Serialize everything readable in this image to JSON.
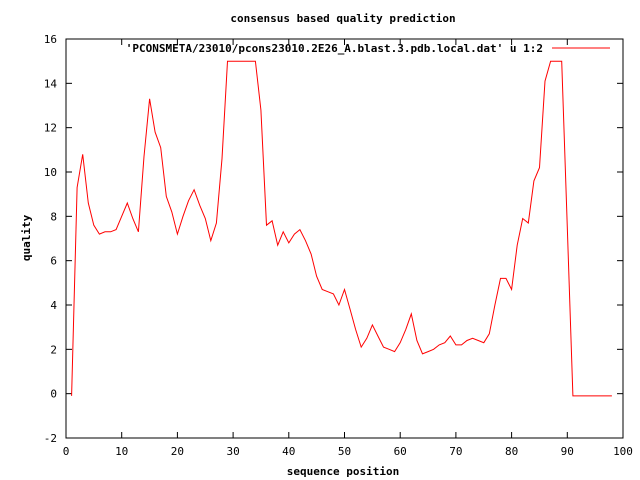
{
  "chart_data": {
    "type": "line",
    "title": "consensus based quality prediction",
    "xlabel": "sequence position",
    "ylabel": "quality",
    "xlim": [
      0,
      100
    ],
    "ylim": [
      -2,
      16
    ],
    "xticks": [
      0,
      10,
      20,
      30,
      40,
      50,
      60,
      70,
      80,
      90,
      100
    ],
    "yticks": [
      -2,
      0,
      2,
      4,
      6,
      8,
      10,
      12,
      14,
      16
    ],
    "legend_position": "top-right",
    "grid": false,
    "series": [
      {
        "name": "'PCONSMETA/23010/pcons23010.2E26_A.blast.3.pdb.local.dat' u 1:2",
        "color": "#ff0000",
        "x": [
          1,
          2,
          3,
          4,
          5,
          6,
          7,
          8,
          9,
          10,
          11,
          12,
          13,
          14,
          15,
          16,
          17,
          18,
          19,
          20,
          21,
          22,
          23,
          24,
          25,
          26,
          27,
          28,
          29,
          30,
          31,
          32,
          33,
          34,
          35,
          36,
          37,
          38,
          39,
          40,
          41,
          42,
          43,
          44,
          45,
          46,
          47,
          48,
          49,
          50,
          51,
          52,
          53,
          54,
          55,
          56,
          57,
          58,
          59,
          60,
          61,
          62,
          63,
          64,
          65,
          66,
          67,
          68,
          69,
          70,
          71,
          72,
          73,
          74,
          75,
          76,
          77,
          78,
          79,
          80,
          81,
          82,
          83,
          84,
          85,
          86,
          87,
          88,
          89,
          90,
          91,
          92,
          93,
          94,
          95,
          96,
          97,
          98
        ],
        "y": [
          -0.1,
          9.3,
          10.8,
          8.6,
          7.6,
          7.2,
          7.3,
          7.3,
          7.4,
          8.0,
          8.6,
          7.9,
          7.3,
          10.7,
          13.3,
          11.8,
          11.1,
          8.9,
          8.2,
          7.2,
          8.0,
          8.7,
          9.2,
          8.5,
          7.9,
          6.9,
          7.7,
          10.6,
          15.0,
          15.0,
          15.0,
          15.0,
          15.0,
          15.0,
          12.8,
          7.6,
          7.8,
          6.7,
          7.3,
          6.8,
          7.2,
          7.4,
          6.9,
          6.3,
          5.3,
          4.7,
          4.6,
          4.5,
          4.0,
          4.7,
          3.8,
          2.9,
          2.1,
          2.5,
          3.1,
          2.6,
          2.1,
          2.0,
          1.9,
          2.3,
          2.9,
          3.6,
          2.4,
          1.8,
          1.9,
          2.0,
          2.2,
          2.3,
          2.6,
          2.2,
          2.2,
          2.4,
          2.5,
          2.4,
          2.3,
          2.7,
          4.0,
          5.2,
          5.2,
          4.7,
          6.7,
          7.9,
          7.7,
          9.6,
          10.2,
          14.1,
          15.0,
          15.0,
          15.0,
          7.5,
          -0.1,
          -0.1,
          -0.1,
          -0.1,
          -0.1,
          -0.1,
          -0.1,
          -0.1
        ]
      }
    ]
  }
}
